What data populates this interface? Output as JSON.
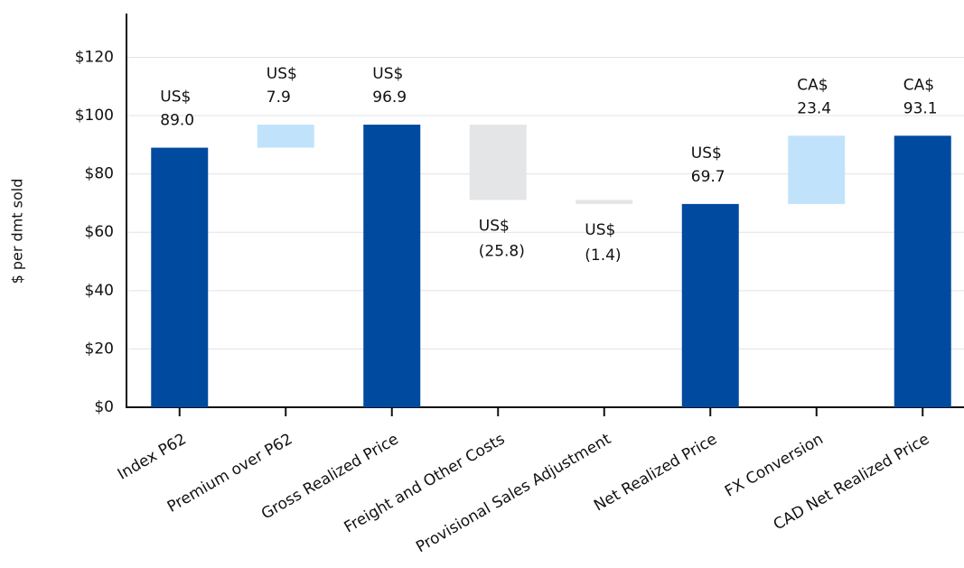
{
  "chart_data": {
    "type": "waterfall",
    "y_label": "$ per dmt sold",
    "categories": [
      "Index P62",
      "Premium over P62",
      "Gross Realized Price",
      "Freight and Other Costs",
      "Provisional Sales Adjustment",
      "Net Realized Price",
      "FX Conversion",
      "CAD Net Realized Price"
    ],
    "values": [
      89.0,
      7.9,
      96.9,
      -25.8,
      -1.4,
      69.7,
      23.4,
      93.1
    ],
    "value_labels": [
      "US$ 89.0",
      "US$ 7.9",
      "US$ 96.9",
      "US$ (25.8)",
      "US$ (1.4)",
      "US$ 69.7",
      "CA$ 23.4",
      "CA$ 93.1"
    ],
    "kinds": [
      "total",
      "delta",
      "total",
      "delta",
      "delta",
      "total",
      "delta",
      "total"
    ],
    "colors": {
      "total": "#004a9f",
      "increase": "#c0e3fb",
      "decrease": "#e4e5e7"
    },
    "ylim": [
      0,
      135
    ],
    "yticks": [
      {
        "value": 0,
        "label": "$0"
      },
      {
        "value": 20,
        "label": "$20"
      },
      {
        "value": 40,
        "label": "$40"
      },
      {
        "value": 60,
        "label": "$60"
      },
      {
        "value": 80,
        "label": "$80"
      },
      {
        "value": 100,
        "label": "$100"
      },
      {
        "value": 120,
        "label": "$120"
      }
    ],
    "grid": true
  }
}
